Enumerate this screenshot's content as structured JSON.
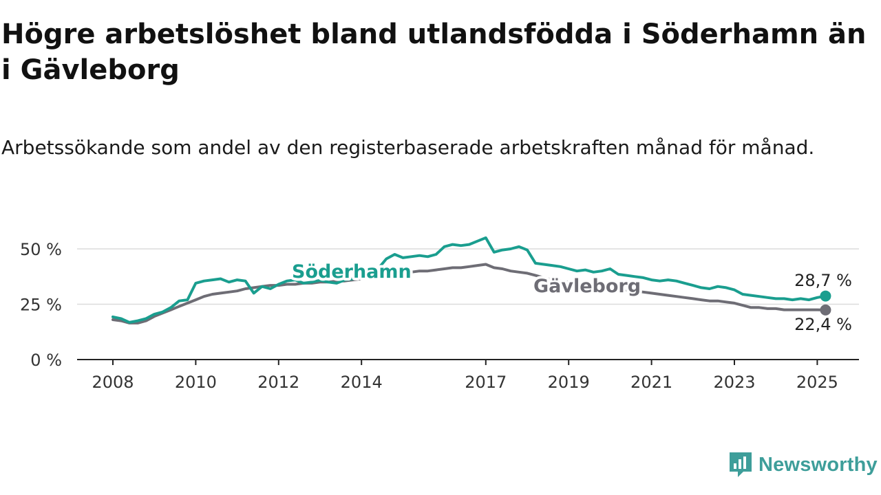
{
  "title": "Högre arbetslöshet bland utlandsfödda i Söderhamn än i Gävleborg",
  "subtitle": "Arbetssökande som andel av den registerbaserade arbetskraften månad för månad.",
  "brand": {
    "name": "Newsworthy",
    "color": "#3e9e9a"
  },
  "chart_data": {
    "type": "line",
    "y_ticks": [
      0,
      25,
      50
    ],
    "y_tick_labels": [
      "0 %",
      "25 %",
      "50 %"
    ],
    "ylim": [
      0,
      60
    ],
    "x_ticks": [
      2008,
      2010,
      2012,
      2014,
      2017,
      2019,
      2021,
      2023,
      2025
    ],
    "x_tick_labels": [
      "2008",
      "2010",
      "2012",
      "2014",
      "2017",
      "2019",
      "2021",
      "2023",
      "2025"
    ],
    "grid": true,
    "series": [
      {
        "name": "Söderhamn",
        "color": "#1a9e8f",
        "end_label": "28,7 %",
        "points": [
          [
            2008.0,
            19.3
          ],
          [
            2008.2,
            18.5
          ],
          [
            2008.4,
            16.8
          ],
          [
            2008.6,
            17.5
          ],
          [
            2008.8,
            18.5
          ],
          [
            2009.0,
            20.5
          ],
          [
            2009.2,
            21.5
          ],
          [
            2009.4,
            23.5
          ],
          [
            2009.6,
            26.5
          ],
          [
            2009.8,
            27.0
          ],
          [
            2010.0,
            34.5
          ],
          [
            2010.2,
            35.5
          ],
          [
            2010.4,
            36.0
          ],
          [
            2010.6,
            36.5
          ],
          [
            2010.8,
            35.0
          ],
          [
            2011.0,
            36.0
          ],
          [
            2011.2,
            35.5
          ],
          [
            2011.4,
            30.0
          ],
          [
            2011.6,
            33.0
          ],
          [
            2011.8,
            32.0
          ],
          [
            2012.0,
            34.0
          ],
          [
            2012.2,
            35.5
          ],
          [
            2012.4,
            36.0
          ],
          [
            2012.6,
            34.5
          ],
          [
            2012.8,
            35.0
          ],
          [
            2013.0,
            35.8
          ],
          [
            2013.2,
            35.0
          ],
          [
            2013.4,
            34.5
          ],
          [
            2013.6,
            36.0
          ],
          [
            2013.8,
            36.5
          ],
          [
            2014.0,
            37.0
          ],
          [
            2014.2,
            37.5
          ],
          [
            2014.4,
            41.0
          ],
          [
            2014.6,
            45.5
          ],
          [
            2014.8,
            47.5
          ],
          [
            2015.0,
            46.0
          ],
          [
            2015.2,
            46.5
          ],
          [
            2015.4,
            47.0
          ],
          [
            2015.6,
            46.5
          ],
          [
            2015.8,
            47.5
          ],
          [
            2016.0,
            51.0
          ],
          [
            2016.2,
            52.0
          ],
          [
            2016.4,
            51.5
          ],
          [
            2016.6,
            52.0
          ],
          [
            2016.8,
            53.5
          ],
          [
            2017.0,
            55.0
          ],
          [
            2017.2,
            48.5
          ],
          [
            2017.4,
            49.5
          ],
          [
            2017.6,
            50.0
          ],
          [
            2017.8,
            51.0
          ],
          [
            2018.0,
            49.5
          ],
          [
            2018.2,
            43.5
          ],
          [
            2018.4,
            43.0
          ],
          [
            2018.6,
            42.5
          ],
          [
            2018.8,
            42.0
          ],
          [
            2019.0,
            41.0
          ],
          [
            2019.2,
            40.0
          ],
          [
            2019.4,
            40.5
          ],
          [
            2019.6,
            39.5
          ],
          [
            2019.8,
            40.0
          ],
          [
            2020.0,
            41.0
          ],
          [
            2020.2,
            38.5
          ],
          [
            2020.4,
            38.0
          ],
          [
            2020.6,
            37.5
          ],
          [
            2020.8,
            37.0
          ],
          [
            2021.0,
            36.0
          ],
          [
            2021.2,
            35.5
          ],
          [
            2021.4,
            36.0
          ],
          [
            2021.6,
            35.5
          ],
          [
            2021.8,
            34.5
          ],
          [
            2022.0,
            33.5
          ],
          [
            2022.2,
            32.5
          ],
          [
            2022.4,
            32.0
          ],
          [
            2022.6,
            33.0
          ],
          [
            2022.8,
            32.5
          ],
          [
            2023.0,
            31.5
          ],
          [
            2023.2,
            29.5
          ],
          [
            2023.4,
            29.0
          ],
          [
            2023.6,
            28.5
          ],
          [
            2023.8,
            28.0
          ],
          [
            2024.0,
            27.5
          ],
          [
            2024.2,
            27.5
          ],
          [
            2024.4,
            27.0
          ],
          [
            2024.6,
            27.5
          ],
          [
            2024.8,
            27.0
          ],
          [
            2025.0,
            28.0
          ],
          [
            2025.2,
            28.7
          ]
        ]
      },
      {
        "name": "Gävleborg",
        "color": "#6e6d75",
        "end_label": "22,4 %",
        "points": [
          [
            2008.0,
            18.0
          ],
          [
            2008.2,
            17.5
          ],
          [
            2008.4,
            16.5
          ],
          [
            2008.6,
            16.5
          ],
          [
            2008.8,
            17.5
          ],
          [
            2009.0,
            19.5
          ],
          [
            2009.2,
            21.0
          ],
          [
            2009.4,
            22.5
          ],
          [
            2009.6,
            24.0
          ],
          [
            2009.8,
            25.5
          ],
          [
            2010.0,
            27.0
          ],
          [
            2010.2,
            28.5
          ],
          [
            2010.4,
            29.5
          ],
          [
            2010.6,
            30.0
          ],
          [
            2010.8,
            30.5
          ],
          [
            2011.0,
            31.0
          ],
          [
            2011.2,
            32.0
          ],
          [
            2011.4,
            32.5
          ],
          [
            2011.6,
            33.0
          ],
          [
            2011.8,
            33.5
          ],
          [
            2012.0,
            33.5
          ],
          [
            2012.2,
            34.0
          ],
          [
            2012.4,
            34.0
          ],
          [
            2012.6,
            34.5
          ],
          [
            2012.8,
            34.5
          ],
          [
            2013.0,
            35.0
          ],
          [
            2013.2,
            35.0
          ],
          [
            2013.4,
            35.5
          ],
          [
            2013.6,
            35.5
          ],
          [
            2013.8,
            36.0
          ],
          [
            2014.0,
            36.5
          ],
          [
            2014.2,
            37.0
          ],
          [
            2014.4,
            37.5
          ],
          [
            2014.6,
            38.0
          ],
          [
            2014.8,
            38.5
          ],
          [
            2015.0,
            39.0
          ],
          [
            2015.2,
            39.5
          ],
          [
            2015.4,
            40.0
          ],
          [
            2015.6,
            40.0
          ],
          [
            2015.8,
            40.5
          ],
          [
            2016.0,
            41.0
          ],
          [
            2016.2,
            41.5
          ],
          [
            2016.4,
            41.5
          ],
          [
            2016.6,
            42.0
          ],
          [
            2016.8,
            42.5
          ],
          [
            2017.0,
            43.0
          ],
          [
            2017.2,
            41.5
          ],
          [
            2017.4,
            41.0
          ],
          [
            2017.6,
            40.0
          ],
          [
            2017.8,
            39.5
          ],
          [
            2018.0,
            39.0
          ],
          [
            2018.2,
            38.0
          ],
          [
            2018.4,
            37.0
          ],
          [
            2018.6,
            36.0
          ],
          [
            2018.8,
            35.5
          ],
          [
            2019.0,
            35.0
          ],
          [
            2019.2,
            34.5
          ],
          [
            2019.4,
            34.0
          ],
          [
            2019.6,
            33.5
          ],
          [
            2019.8,
            33.0
          ],
          [
            2020.0,
            33.0
          ],
          [
            2020.2,
            32.0
          ],
          [
            2020.4,
            31.5
          ],
          [
            2020.6,
            31.0
          ],
          [
            2020.8,
            30.5
          ],
          [
            2021.0,
            30.0
          ],
          [
            2021.2,
            29.5
          ],
          [
            2021.4,
            29.0
          ],
          [
            2021.6,
            28.5
          ],
          [
            2021.8,
            28.0
          ],
          [
            2022.0,
            27.5
          ],
          [
            2022.2,
            27.0
          ],
          [
            2022.4,
            26.5
          ],
          [
            2022.6,
            26.5
          ],
          [
            2022.8,
            26.0
          ],
          [
            2023.0,
            25.5
          ],
          [
            2023.2,
            24.5
          ],
          [
            2023.4,
            23.5
          ],
          [
            2023.6,
            23.5
          ],
          [
            2023.8,
            23.0
          ],
          [
            2024.0,
            23.0
          ],
          [
            2024.2,
            22.5
          ],
          [
            2024.4,
            22.5
          ],
          [
            2024.6,
            22.5
          ],
          [
            2024.8,
            22.5
          ],
          [
            2025.0,
            22.5
          ],
          [
            2025.2,
            22.4
          ]
        ]
      }
    ]
  }
}
